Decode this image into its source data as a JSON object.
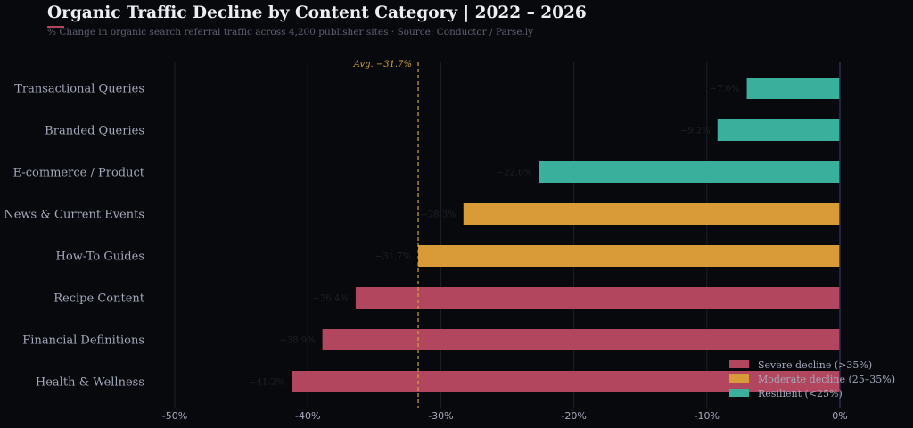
{
  "title": "Organic Traffic Decline by Content Category  |  2022 – 2026",
  "subtitle": "% Change in organic search referral traffic across 4,200 publisher sites  ·  Source: Conductor / Parse.ly",
  "colors": {
    "severe": "#b3465f",
    "moderate": "#d89b37",
    "resilient": "#3aaf9c",
    "average": "#d1a23b",
    "grid": "#1c1f2a",
    "zero_line": "#2a2e55"
  },
  "chart_data": {
    "type": "bar",
    "orientation": "horizontal",
    "categories": [
      "Transactional Queries",
      "Branded Queries",
      "E-commerce / Product",
      "News & Current Events",
      "How-To Guides",
      "Recipe Content",
      "Financial Definitions",
      "Health & Wellness"
    ],
    "values": [
      -7.0,
      -9.2,
      -22.6,
      -28.3,
      -31.7,
      -36.4,
      -38.9,
      -41.2
    ],
    "value_labels": [
      "−7.0%",
      "−9.2%",
      "−22.6%",
      "−28.3%",
      "−31.7%",
      "−36.4%",
      "−38.9%",
      "−41.2%"
    ],
    "groups": [
      "resilient",
      "resilient",
      "resilient",
      "moderate",
      "moderate",
      "severe",
      "severe",
      "severe"
    ],
    "xlim": [
      -50,
      0
    ],
    "xticks": [
      -50,
      -40,
      -30,
      -20,
      -10,
      0
    ],
    "xtick_labels": [
      "-50%",
      "-40%",
      "-30%",
      "-20%",
      "-10%",
      "0%"
    ],
    "average": {
      "value": -31.7,
      "label": "Avg. −31.7%"
    },
    "grid": "vertical",
    "legend_position": "bottom-right",
    "legend": [
      {
        "group": "severe",
        "label": "Severe decline (>35%)"
      },
      {
        "group": "moderate",
        "label": "Moderate decline (25–35%)"
      },
      {
        "group": "resilient",
        "label": "Resilient (<25%)"
      }
    ]
  }
}
